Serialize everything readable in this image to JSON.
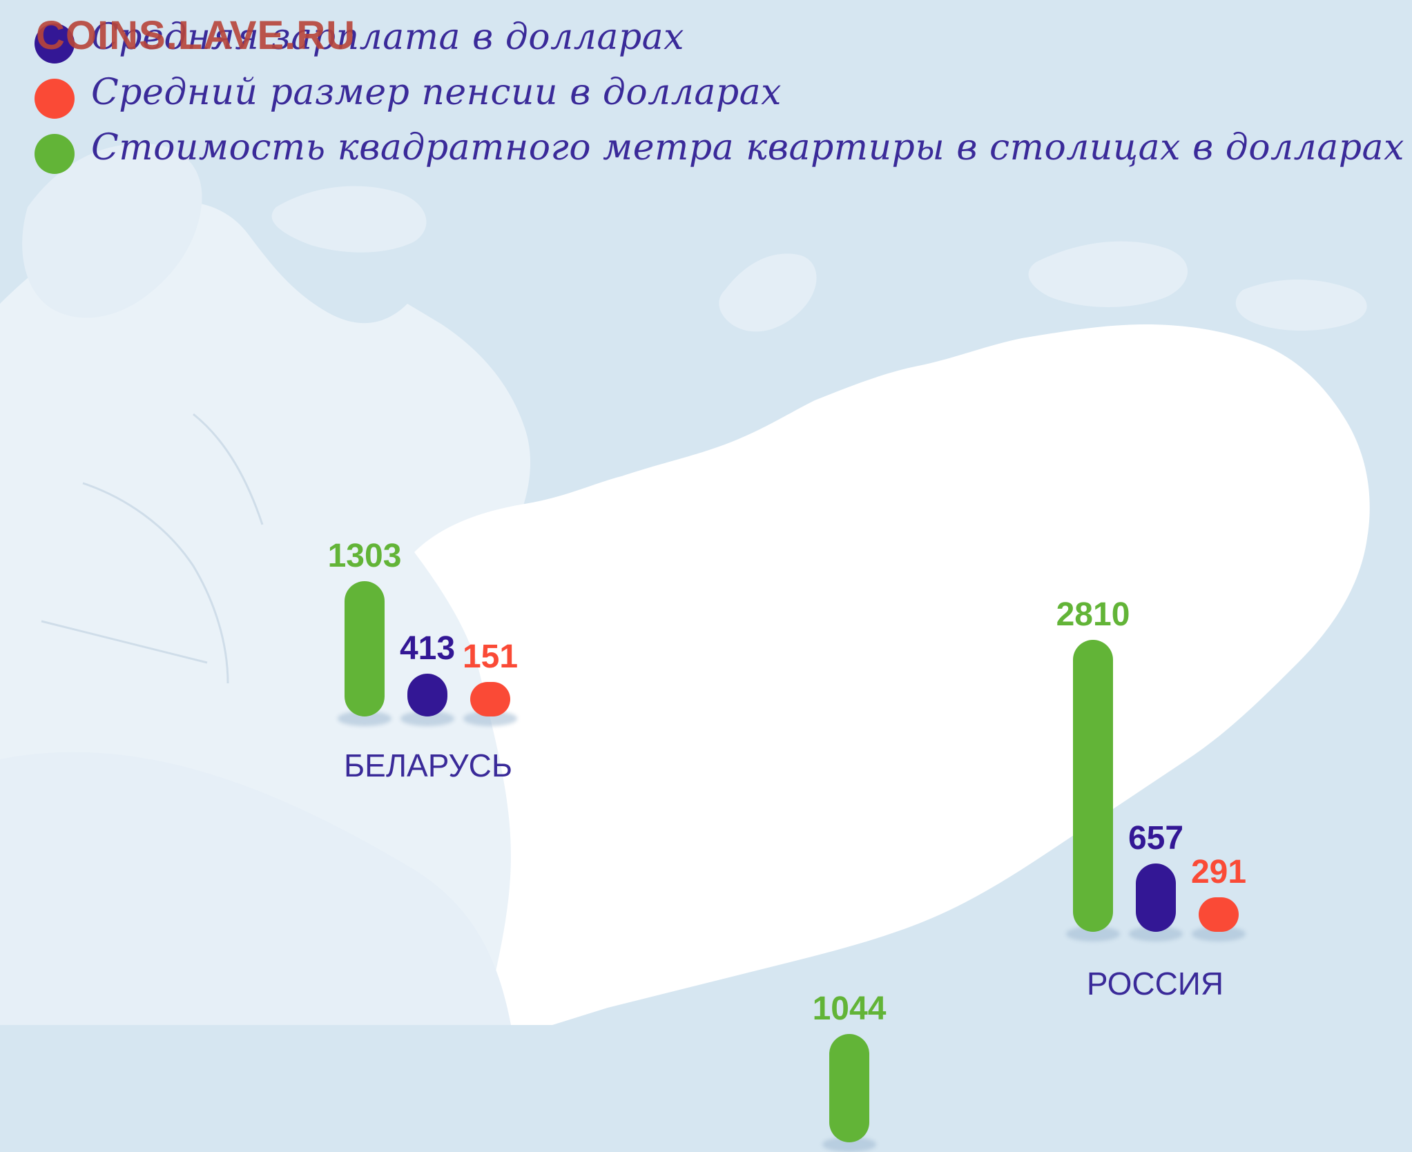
{
  "colors": {
    "salary": "#331795",
    "pension": "#fa4a36",
    "sqm": "#62b437",
    "sea": "#d6e6f1",
    "land": "#eaf2f8",
    "land_white": "#ffffff",
    "label_text": "#3a2a99"
  },
  "watermark": "COINS.LAVE.RU",
  "legend": [
    {
      "key": "salary",
      "label": "Средняя зарплата в долларах",
      "color": "#331795"
    },
    {
      "key": "pension",
      "label": "Средний размер пенсии в долларах",
      "color": "#fa4a36"
    },
    {
      "key": "sqm",
      "label": "Стоимость квадратного метра квартиры в столицах в долларах",
      "color": "#62b437"
    }
  ],
  "chart_data": {
    "type": "bar",
    "categories": [
      "БЕЛАРУСЬ",
      "РОССИЯ",
      ""
    ],
    "series": [
      {
        "name": "Стоимость квадратного метра квартиры в столицах в долларах",
        "values": [
          1303,
          2810,
          1044
        ]
      },
      {
        "name": "Средняя зарплата в долларах",
        "values": [
          413,
          657,
          null
        ]
      },
      {
        "name": "Средний размер пенсии в долларах",
        "values": [
          151,
          291,
          null
        ]
      }
    ],
    "data_labels": {
      "БЕЛАРУСЬ": {
        "sqm": "1303",
        "salary": "413",
        "pension": "151"
      },
      "РОССИЯ": {
        "sqm": "2810",
        "salary": "657",
        "pension": "291"
      },
      "third": {
        "sqm": "1044"
      }
    }
  }
}
